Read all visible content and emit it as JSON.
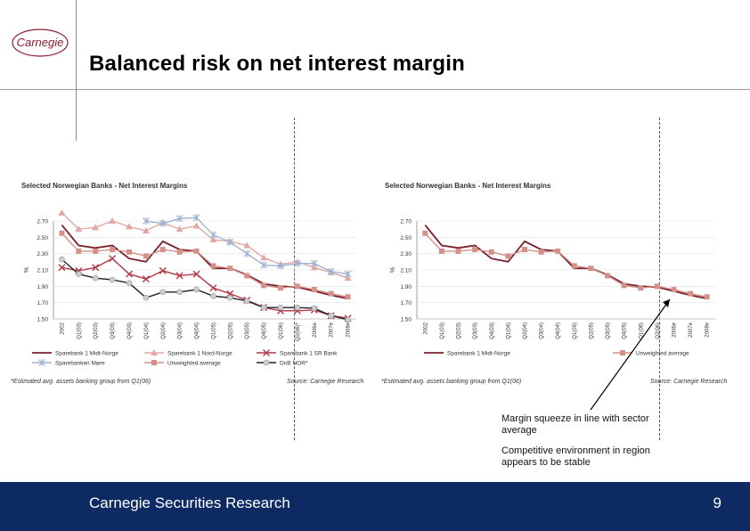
{
  "brand": {
    "logo_text": "Carnegie",
    "color": "#8b1d2c"
  },
  "page_title": "Balanced risk on net interest margin",
  "footer": {
    "text": "Carnegie Securities Research",
    "page_number": "9",
    "background": "#0e2a63"
  },
  "callout": {
    "line1": "Margin squeeze in line with sector average",
    "line2": "Competitive environment in region appears to be stable"
  },
  "chart_data": [
    {
      "type": "line",
      "title": "Selected Norwegian Banks - Net Interest Margins",
      "ylabel": "%",
      "ylim": [
        1.5,
        2.7
      ],
      "yticks": [
        "2.70",
        "2.50",
        "2.30",
        "2.10",
        "1.90",
        "1.70",
        "1.50"
      ],
      "categories": [
        "2002",
        "Q1(03)",
        "Q2(03)",
        "Q3(03)",
        "Q4(03)",
        "Q1(04)",
        "Q2(04)",
        "Q3(04)",
        "Q4(04)",
        "Q1(05)",
        "Q2(05)",
        "Q3(05)",
        "Q4(05)",
        "Q1(06)",
        "Q2(06)*",
        "2006e",
        "2007e",
        "2008e"
      ],
      "estimate_marker_after": "Q1(06)",
      "series": [
        {
          "name": "Sparebank 1 Midt-Norge",
          "color": "#7a1f2b",
          "marker": "none",
          "values": [
            2.65,
            2.4,
            2.37,
            2.4,
            2.24,
            2.2,
            2.45,
            2.35,
            2.33,
            2.12,
            2.12,
            2.04,
            1.93,
            1.9,
            1.89,
            1.84,
            1.79,
            1.75
          ]
        },
        {
          "name": "Sparebank 1 Nord-Norge",
          "color": "#e3a8a4",
          "marker": "triangle",
          "values": [
            2.8,
            2.6,
            2.62,
            2.7,
            2.63,
            2.58,
            2.68,
            2.6,
            2.64,
            2.47,
            2.45,
            2.4,
            2.25,
            2.17,
            2.2,
            2.13,
            2.07,
            2.0
          ]
        },
        {
          "name": "Sparebank 1 SR Bank",
          "color": "#b03a48",
          "marker": "x",
          "values": [
            2.13,
            2.09,
            2.13,
            2.24,
            2.05,
            1.99,
            2.09,
            2.03,
            2.05,
            1.88,
            1.81,
            1.73,
            1.64,
            1.6,
            1.6,
            1.61,
            1.54,
            1.51
          ]
        },
        {
          "name": "Sparebanken Møre",
          "color": "#9fb4d4",
          "marker": "star",
          "values": [
            null,
            null,
            null,
            null,
            null,
            2.7,
            2.67,
            2.73,
            2.74,
            2.53,
            2.44,
            2.3,
            2.16,
            2.15,
            2.18,
            2.18,
            2.08,
            2.05
          ]
        },
        {
          "name": "Unweighted average",
          "color": "#d39189",
          "marker": "square",
          "values": [
            2.55,
            2.33,
            2.33,
            2.35,
            2.32,
            2.27,
            2.35,
            2.32,
            2.33,
            2.15,
            2.12,
            2.03,
            1.91,
            1.88,
            1.9,
            1.86,
            1.81,
            1.77
          ]
        },
        {
          "name": "DnB NOR*",
          "color": "#222222",
          "marker": "circle",
          "values": [
            2.23,
            2.05,
            2.0,
            1.98,
            1.94,
            1.76,
            1.83,
            1.83,
            1.86,
            1.78,
            1.76,
            1.72,
            1.64,
            1.64,
            1.64,
            1.63,
            1.54,
            1.49
          ]
        }
      ],
      "note": "*Estimated avg. assets banking group from Q1(06)",
      "source": "Source: Carnegie Research"
    },
    {
      "type": "line",
      "title": "Selected Norwegian Banks - Net Interest Margins",
      "ylabel": "%",
      "ylim": [
        1.5,
        2.7
      ],
      "yticks": [
        "2.70",
        "2.50",
        "2.30",
        "2.10",
        "1.90",
        "1.70",
        "1.50"
      ],
      "categories": [
        "2002",
        "Q1(03)",
        "Q2(03)",
        "Q3(03)",
        "Q4(03)",
        "Q1(04)",
        "Q2(04)",
        "Q3(04)",
        "Q4(04)",
        "Q1(05)",
        "Q2(05)",
        "Q3(05)",
        "Q4(05)",
        "Q1(06)",
        "Q2(06)",
        "2006e",
        "2007e",
        "2008e"
      ],
      "series": [
        {
          "name": "Sparebank 1 Midt-Norge",
          "color": "#7a1f2b",
          "marker": "none",
          "values": [
            2.65,
            2.4,
            2.37,
            2.4,
            2.24,
            2.2,
            2.45,
            2.35,
            2.33,
            2.12,
            2.12,
            2.04,
            1.93,
            1.9,
            1.89,
            1.84,
            1.79,
            1.75
          ]
        },
        {
          "name": "Unweighted average",
          "color": "#d39189",
          "marker": "square",
          "values": [
            2.55,
            2.33,
            2.33,
            2.35,
            2.32,
            2.27,
            2.35,
            2.32,
            2.33,
            2.15,
            2.12,
            2.03,
            1.91,
            1.88,
            1.9,
            1.86,
            1.81,
            1.77
          ]
        }
      ],
      "note": "*Estimated avg. assets banking group from Q1(06)",
      "source": "Source: Carnegie Research"
    }
  ]
}
